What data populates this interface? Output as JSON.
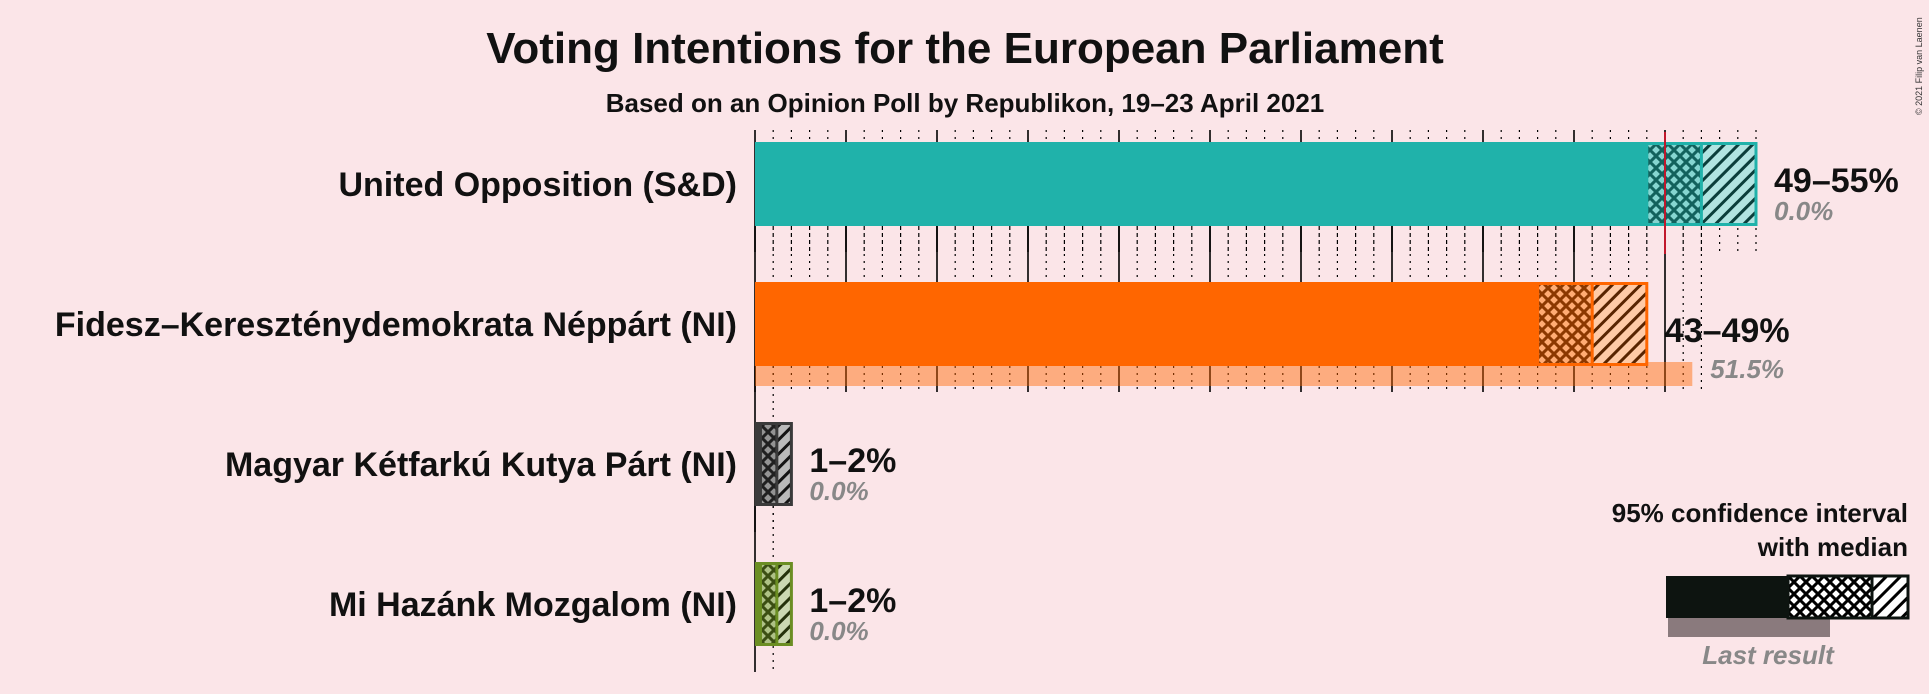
{
  "chart_data": {
    "type": "bar",
    "title": "Voting Intentions for the European Parliament",
    "subtitle": "Based on an Opinion Poll by Republikon, 19–23 April 2021",
    "copyright": "© 2021 Filip van Laenen",
    "xlim": [
      0,
      55
    ],
    "majorTicks": [
      0,
      5,
      10,
      15,
      20,
      25,
      30,
      35,
      40,
      45,
      50
    ],
    "minorStep": 1,
    "series": [
      {
        "party": "United Opposition (S&D)",
        "color": "#20b2aa",
        "ci_low": 49,
        "ci_median": 52,
        "ci_high": 55,
        "range_label": "49–55%",
        "last_result": 0.0,
        "last_label": "0.0%",
        "median_line": 50
      },
      {
        "party": "Fidesz–Kereszténydemokrata Néppárt (NI)",
        "color": "#ff6600",
        "ci_low": 43,
        "ci_median": 46,
        "ci_high": 49,
        "range_label": "43–49%",
        "last_result": 51.5,
        "last_label": "51.5%"
      },
      {
        "party": "Magyar Kétfarkú Kutya Párt (NI)",
        "color": "#3a3a3a",
        "ci_low": 0.3,
        "ci_median": 1.2,
        "ci_high": 2,
        "range_label": "1–2%",
        "last_result": 0.0,
        "last_label": "0.0%"
      },
      {
        "party": "Mi Hazánk Mozgalom (NI)",
        "color": "#6b8e23",
        "ci_low": 0.3,
        "ci_median": 1.2,
        "ci_high": 2,
        "range_label": "1–2%",
        "last_result": 0.0,
        "last_label": "0.0%"
      }
    ],
    "legend": {
      "line1": "95% confidence interval",
      "line2": "with median",
      "last": "Last result"
    }
  }
}
